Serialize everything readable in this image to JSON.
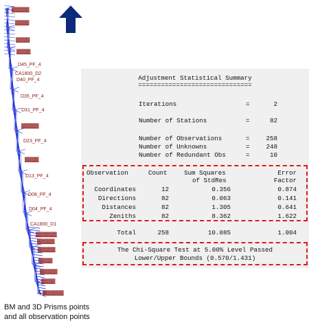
{
  "network": {
    "point_labels": [
      "D45_PF_4",
      "D40_PF_4",
      "D35_PF_4",
      "D31_PF_4",
      "D23_PF_4",
      "D13_PF_4",
      "D08_PF_4",
      "D04_PF_4",
      "CA1800_D2",
      "CA1800_D1"
    ],
    "colors": {
      "lines": "#1c2fd4",
      "labels": "#8b1a1a",
      "arrow": "#0b2a7a"
    }
  },
  "summary": {
    "title": "Adjustment Statistical Summary",
    "underline": "==============================",
    "iterations": {
      "label": "Iterations",
      "eq": "=",
      "value": "2"
    },
    "stations": {
      "label": "Number of Stations",
      "eq": "=",
      "value": "82"
    },
    "observations": {
      "label": "Number of Observations",
      "eq": "=",
      "value": "258"
    },
    "unknowns": {
      "label": "Number of Unknowns",
      "eq": "=",
      "value": "248"
    },
    "redundant": {
      "label": "Number of Redundant Obs",
      "eq": "=",
      "value": "10"
    },
    "table": {
      "headers": {
        "observation": "Observation",
        "count": "Count",
        "ss1": "Sum Squares",
        "ss2": "of StdRes",
        "ef1": "Error",
        "ef2": "Factor"
      },
      "rows": [
        {
          "observation": "Coordinates",
          "count": "12",
          "sum": "0.356",
          "factor": "0.874"
        },
        {
          "observation": "Directions",
          "count": "82",
          "sum": "0.063",
          "factor": "0.141"
        },
        {
          "observation": "Distances",
          "count": "82",
          "sum": "1.305",
          "factor": "0.641"
        },
        {
          "observation": "Zeniths",
          "count": "82",
          "sum": "8.362",
          "factor": "1.622"
        }
      ],
      "total": {
        "observation": "Total",
        "count": "258",
        "sum": "10.085",
        "factor": "1.004"
      }
    },
    "chi_line1": "The Chi-Square Test at 5.00% Level Passed",
    "chi_line2": "Lower/Upper Bounds (0.570/1.431)"
  },
  "caption": {
    "line1": "BM and 3D Prisms points",
    "line2": "and all observation points"
  }
}
